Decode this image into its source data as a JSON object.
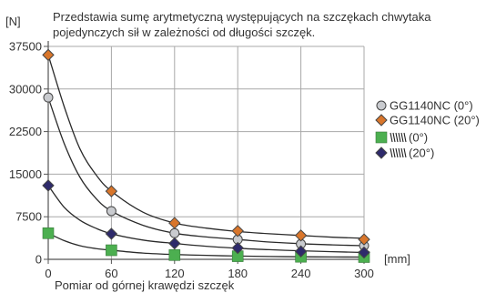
{
  "chart_data": {
    "type": "scatter",
    "subtitle_lines": [
      "Przedstawia sumę arytmetyczną występujących na szczękach chwytaka",
      "pojedynczych sił w zależności od długości szczęk."
    ],
    "y_unit": "[N]",
    "x_unit": "[mm]",
    "xlabel": "Pomiar od górnej krawędzi szczęk",
    "x_ticks": [
      0,
      60,
      120,
      180,
      240,
      300
    ],
    "y_ticks": [
      0,
      7500,
      15000,
      22500,
      30000,
      37500
    ],
    "xlim": [
      0,
      300
    ],
    "ylim": [
      0,
      37500
    ],
    "grid": true,
    "legend_position": "right",
    "series": [
      {
        "name": "GG1140NC (0°)",
        "marker": "circle",
        "color": "#c9cbcf",
        "x": [
          0,
          60,
          120,
          180,
          240,
          300
        ],
        "y": [
          28500,
          8500,
          4600,
          3500,
          2700,
          2400
        ],
        "curve": [
          [
            0,
            28500
          ],
          [
            15,
            20500
          ],
          [
            30,
            14500
          ],
          [
            45,
            10800
          ],
          [
            60,
            8500
          ],
          [
            90,
            6000
          ],
          [
            120,
            4600
          ],
          [
            150,
            3950
          ],
          [
            180,
            3500
          ],
          [
            210,
            3050
          ],
          [
            240,
            2750
          ],
          [
            270,
            2550
          ],
          [
            300,
            2400
          ]
        ]
      },
      {
        "name": "GG1140NC (20°)",
        "marker": "diamond",
        "color": "#d9762b",
        "x": [
          0,
          60,
          120,
          180,
          240,
          300
        ],
        "y": [
          36000,
          12000,
          6400,
          5000,
          4200,
          3500
        ],
        "curve": [
          [
            0,
            36000
          ],
          [
            15,
            27000
          ],
          [
            30,
            19500
          ],
          [
            45,
            15000
          ],
          [
            60,
            12000
          ],
          [
            90,
            8300
          ],
          [
            120,
            6400
          ],
          [
            150,
            5500
          ],
          [
            180,
            4900
          ],
          [
            210,
            4500
          ],
          [
            240,
            4200
          ],
          [
            270,
            3900
          ],
          [
            300,
            3700
          ]
        ]
      },
      {
        "name": "(0°)",
        "marker": "square",
        "color": "#4caf50",
        "x": [
          0,
          60,
          120,
          180,
          240,
          300
        ],
        "y": [
          4600,
          1600,
          750,
          550,
          450,
          400
        ],
        "curve": [
          [
            0,
            4600
          ],
          [
            15,
            3300
          ],
          [
            30,
            2400
          ],
          [
            45,
            1900
          ],
          [
            60,
            1600
          ],
          [
            90,
            1100
          ],
          [
            120,
            850
          ],
          [
            150,
            700
          ],
          [
            180,
            580
          ],
          [
            210,
            500
          ],
          [
            240,
            450
          ],
          [
            270,
            420
          ],
          [
            300,
            400
          ]
        ]
      },
      {
        "name": "(20°)",
        "marker": "diamond",
        "color": "#2e2a6b",
        "x": [
          0,
          60,
          120,
          180,
          240,
          300
        ],
        "y": [
          13000,
          4500,
          2800,
          2000,
          1400,
          1200
        ],
        "curve": [
          [
            0,
            13000
          ],
          [
            15,
            9200
          ],
          [
            30,
            6900
          ],
          [
            45,
            5500
          ],
          [
            60,
            4500
          ],
          [
            90,
            3400
          ],
          [
            120,
            2800
          ],
          [
            150,
            2300
          ],
          [
            180,
            1950
          ],
          [
            210,
            1700
          ],
          [
            240,
            1500
          ],
          [
            270,
            1350
          ],
          [
            300,
            1200
          ]
        ]
      }
    ]
  }
}
